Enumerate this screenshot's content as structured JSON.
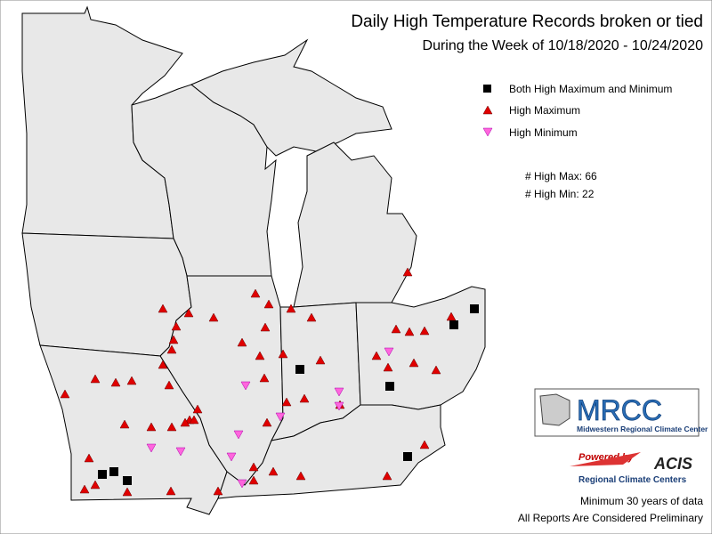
{
  "header": {
    "title": "Daily High Temperature Records broken or tied",
    "subtitle": "During the Week of 10/18/2020 - 10/24/2020"
  },
  "legend": {
    "items": [
      "Both High Maximum and Minimum",
      "High Maximum",
      "High Minimum"
    ]
  },
  "counts": [
    "# High Max: 66",
    "# High Min: 22"
  ],
  "logo": {
    "name": "MRCC",
    "full_name": "Midwestern Regional Climate Center",
    "powered": "Powered by",
    "acis": "ACIS",
    "rcc": "Regional Climate Centers"
  },
  "notes": [
    "Minimum 30 years of data",
    "All Reports Are Considered Preliminary"
  ]
}
